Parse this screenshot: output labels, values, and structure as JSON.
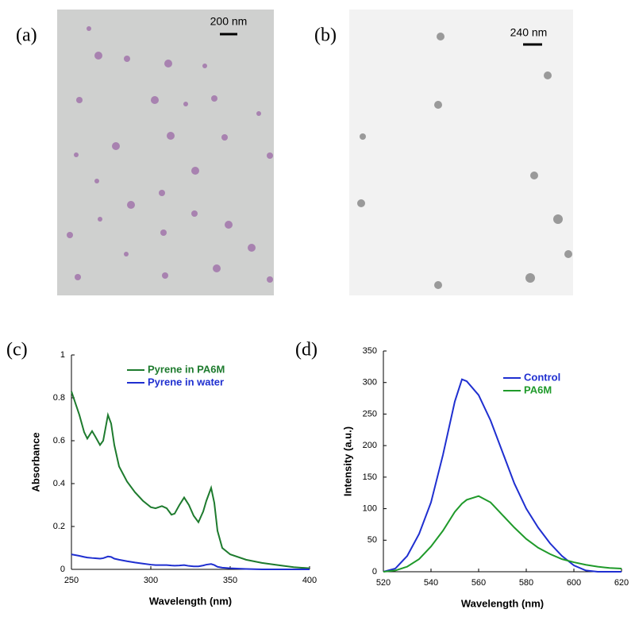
{
  "images": [
    {
      "label": "(a)",
      "scale_bar": "200 nm"
    },
    {
      "label": "(b)",
      "scale_bar": "240 nm"
    }
  ],
  "chart_data": [
    {
      "type": "line",
      "panel_label": "(c)",
      "x_label": "Wavelength (nm)",
      "y_label": "Absorbance",
      "x": [
        250,
        255,
        258,
        260,
        263,
        265,
        268,
        270,
        273,
        275,
        277,
        280,
        285,
        290,
        295,
        300,
        303,
        307,
        310,
        313,
        315,
        318,
        321,
        324,
        327,
        330,
        333,
        335,
        338,
        340,
        342,
        345,
        350,
        360,
        370,
        380,
        390,
        400
      ],
      "series": [
        {
          "name": "Pyrene in PA6M",
          "color": "#1e7b2e",
          "values": [
            0.83,
            0.72,
            0.64,
            0.61,
            0.645,
            0.62,
            0.58,
            0.6,
            0.72,
            0.68,
            0.58,
            0.48,
            0.41,
            0.36,
            0.32,
            0.29,
            0.285,
            0.295,
            0.285,
            0.255,
            0.26,
            0.3,
            0.335,
            0.3,
            0.25,
            0.22,
            0.27,
            0.32,
            0.38,
            0.31,
            0.18,
            0.1,
            0.07,
            0.045,
            0.03,
            0.02,
            0.01,
            0.005
          ]
        },
        {
          "name": "Pyrene in water",
          "color": "#1f2fd0",
          "values": [
            0.07,
            0.063,
            0.058,
            0.055,
            0.053,
            0.052,
            0.05,
            0.052,
            0.06,
            0.058,
            0.05,
            0.045,
            0.038,
            0.032,
            0.027,
            0.022,
            0.02,
            0.02,
            0.02,
            0.018,
            0.017,
            0.018,
            0.02,
            0.016,
            0.014,
            0.014,
            0.018,
            0.022,
            0.025,
            0.02,
            0.012,
            0.008,
            0.005,
            0.002,
            0,
            0,
            0,
            0
          ]
        }
      ],
      "xlim": [
        250,
        400
      ],
      "xticks": [
        250,
        300,
        350,
        400
      ],
      "ylim": [
        0,
        1
      ],
      "yticks": [
        0,
        0.2,
        0.4,
        0.6,
        0.8,
        1
      ]
    },
    {
      "type": "line",
      "panel_label": "(d)",
      "x_label": "Wavelength (nm)",
      "y_label": "Intensity (a.u.)",
      "x": [
        520,
        525,
        530,
        535,
        540,
        545,
        550,
        553,
        555,
        560,
        565,
        570,
        575,
        580,
        585,
        590,
        595,
        600,
        605,
        610,
        615,
        620
      ],
      "series": [
        {
          "name": "Control",
          "color": "#1f2fd0",
          "values": [
            0,
            5,
            25,
            60,
            110,
            185,
            270,
            305,
            302,
            280,
            240,
            190,
            140,
            100,
            70,
            45,
            25,
            10,
            2,
            0,
            0,
            0
          ]
        },
        {
          "name": "PA6M",
          "color": "#1f9a2a",
          "values": [
            0,
            2,
            8,
            20,
            40,
            65,
            95,
            108,
            114,
            120,
            110,
            90,
            70,
            52,
            38,
            28,
            20,
            15,
            11,
            8,
            6,
            5
          ]
        }
      ],
      "xlim": [
        520,
        620
      ],
      "xticks": [
        520,
        540,
        560,
        580,
        600,
        620
      ],
      "ylim": [
        0,
        350
      ],
      "yticks": [
        0,
        50,
        100,
        150,
        200,
        250,
        300,
        350
      ]
    }
  ]
}
